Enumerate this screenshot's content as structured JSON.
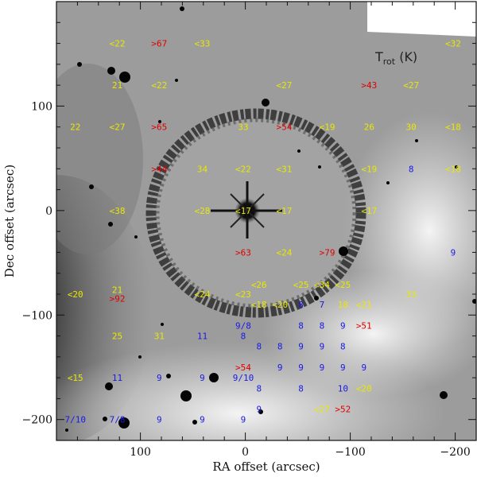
{
  "chart_data": {
    "type": "scatter",
    "title": "",
    "xlabel": "RA offset (arcsec)",
    "ylabel": "Dec offset (arcsec)",
    "key_label": "T",
    "key_sub": "rot",
    "key_unit": " (K)",
    "xlim": [
      180,
      -220
    ],
    "ylim": [
      -220,
      200
    ],
    "x_ticks": [
      100,
      0,
      -100,
      -200
    ],
    "x_tick_labels": [
      "100",
      "0",
      "−100",
      "−200"
    ],
    "y_ticks": [
      100,
      0,
      -100,
      -200
    ],
    "y_tick_labels": [
      "100",
      "0",
      "−100",
      "−200"
    ],
    "grid": false,
    "background": "grayscale nebula image",
    "colors": {
      "upper_limit": "#e8e800",
      "lower_limit": "#e00000",
      "value": "#e8e800",
      "cold_value": "#1a1ae6"
    },
    "points": [
      {
        "x": 122,
        "y": 160,
        "label": "<22",
        "color": "upper_limit"
      },
      {
        "x": 82,
        "y": 160,
        "label": ">67",
        "color": "lower_limit"
      },
      {
        "x": 41,
        "y": 160,
        "label": "<33",
        "color": "upper_limit"
      },
      {
        "x": -198,
        "y": 160,
        "label": "<32",
        "color": "upper_limit"
      },
      {
        "x": 122,
        "y": 120,
        "label": "21",
        "color": "value"
      },
      {
        "x": 82,
        "y": 120,
        "label": "<22",
        "color": "upper_limit"
      },
      {
        "x": -37,
        "y": 120,
        "label": "<27",
        "color": "upper_limit"
      },
      {
        "x": -118,
        "y": 120,
        "label": ">43",
        "color": "lower_limit"
      },
      {
        "x": -158,
        "y": 120,
        "label": "<27",
        "color": "upper_limit"
      },
      {
        "x": 162,
        "y": 80,
        "label": "22",
        "color": "value"
      },
      {
        "x": 122,
        "y": 80,
        "label": "<27",
        "color": "upper_limit"
      },
      {
        "x": 82,
        "y": 80,
        "label": ">65",
        "color": "lower_limit"
      },
      {
        "x": 2,
        "y": 80,
        "label": "33",
        "color": "value"
      },
      {
        "x": -37,
        "y": 80,
        "label": ">54",
        "color": "lower_limit"
      },
      {
        "x": -78,
        "y": 80,
        "label": "<19",
        "color": "upper_limit"
      },
      {
        "x": -118,
        "y": 80,
        "label": "26",
        "color": "value"
      },
      {
        "x": -158,
        "y": 80,
        "label": "30",
        "color": "value"
      },
      {
        "x": -198,
        "y": 80,
        "label": "<18",
        "color": "upper_limit"
      },
      {
        "x": 82,
        "y": 40,
        "label": ">44",
        "color": "lower_limit"
      },
      {
        "x": 41,
        "y": 40,
        "label": "34",
        "color": "value"
      },
      {
        "x": 2,
        "y": 40,
        "label": "<22",
        "color": "upper_limit"
      },
      {
        "x": -37,
        "y": 40,
        "label": "<31",
        "color": "upper_limit"
      },
      {
        "x": -118,
        "y": 40,
        "label": "<19",
        "color": "upper_limit"
      },
      {
        "x": -158,
        "y": 40,
        "label": "8",
        "color": "cold_value"
      },
      {
        "x": -198,
        "y": 40,
        "label": "<18",
        "color": "upper_limit"
      },
      {
        "x": 122,
        "y": 0,
        "label": "<38",
        "color": "upper_limit"
      },
      {
        "x": 41,
        "y": 0,
        "label": "<28",
        "color": "upper_limit"
      },
      {
        "x": 2,
        "y": 0,
        "label": "<17",
        "color": "upper_limit"
      },
      {
        "x": -37,
        "y": 0,
        "label": "<17",
        "color": "upper_limit"
      },
      {
        "x": -118,
        "y": 0,
        "label": "<17",
        "color": "upper_limit"
      },
      {
        "x": 2,
        "y": -40,
        "label": ">63",
        "color": "lower_limit"
      },
      {
        "x": -37,
        "y": -40,
        "label": "<24",
        "color": "upper_limit"
      },
      {
        "x": -78,
        "y": -40,
        "label": ">79",
        "color": "lower_limit"
      },
      {
        "x": -198,
        "y": -40,
        "label": "9",
        "color": "cold_value"
      },
      {
        "x": -13,
        "y": -71,
        "label": "<26",
        "color": "upper_limit"
      },
      {
        "x": -53,
        "y": -71,
        "label": "<25",
        "color": "upper_limit"
      },
      {
        "x": -73,
        "y": -71,
        "label": "<34",
        "color": "upper_limit"
      },
      {
        "x": -93,
        "y": -71,
        "label": "<25",
        "color": "upper_limit"
      },
      {
        "x": 162,
        "y": -80,
        "label": "<20",
        "color": "upper_limit"
      },
      {
        "x": 122,
        "y": -76,
        "label": "21",
        "color": "value"
      },
      {
        "x": 122,
        "y": -84,
        "label": ">92",
        "color": "lower_limit"
      },
      {
        "x": 41,
        "y": -80,
        "label": "<24",
        "color": "upper_limit"
      },
      {
        "x": 2,
        "y": -80,
        "label": "<23",
        "color": "upper_limit"
      },
      {
        "x": -158,
        "y": -80,
        "label": "33",
        "color": "value"
      },
      {
        "x": -13,
        "y": -90,
        "label": "<18",
        "color": "upper_limit"
      },
      {
        "x": -33,
        "y": -90,
        "label": "<20",
        "color": "upper_limit"
      },
      {
        "x": -53,
        "y": -90,
        "label": "8",
        "color": "cold_value"
      },
      {
        "x": -73,
        "y": -90,
        "label": "7",
        "color": "cold_value"
      },
      {
        "x": -93,
        "y": -90,
        "label": "18",
        "color": "value"
      },
      {
        "x": -113,
        "y": -90,
        "label": "<21",
        "color": "upper_limit"
      },
      {
        "x": 2,
        "y": -110,
        "label": "9/8",
        "color": "cold_value"
      },
      {
        "x": -53,
        "y": -110,
        "label": "8",
        "color": "cold_value"
      },
      {
        "x": -73,
        "y": -110,
        "label": "8",
        "color": "cold_value"
      },
      {
        "x": -93,
        "y": -110,
        "label": "9",
        "color": "cold_value"
      },
      {
        "x": -113,
        "y": -110,
        "label": ">51",
        "color": "lower_limit"
      },
      {
        "x": 122,
        "y": -120,
        "label": "25",
        "color": "value"
      },
      {
        "x": 82,
        "y": -120,
        "label": "31",
        "color": "value"
      },
      {
        "x": 41,
        "y": -120,
        "label": "11",
        "color": "cold_value"
      },
      {
        "x": 2,
        "y": -120,
        "label": "8",
        "color": "cold_value"
      },
      {
        "x": -13,
        "y": -130,
        "label": "8",
        "color": "cold_value"
      },
      {
        "x": -33,
        "y": -130,
        "label": "8",
        "color": "cold_value"
      },
      {
        "x": -53,
        "y": -130,
        "label": "9",
        "color": "cold_value"
      },
      {
        "x": -73,
        "y": -130,
        "label": "9",
        "color": "cold_value"
      },
      {
        "x": -93,
        "y": -130,
        "label": "8",
        "color": "cold_value"
      },
      {
        "x": 2,
        "y": -150,
        "label": ">54",
        "color": "lower_limit"
      },
      {
        "x": -33,
        "y": -150,
        "label": "9",
        "color": "cold_value"
      },
      {
        "x": -53,
        "y": -150,
        "label": "9",
        "color": "cold_value"
      },
      {
        "x": -73,
        "y": -150,
        "label": "9",
        "color": "cold_value"
      },
      {
        "x": -93,
        "y": -150,
        "label": "9",
        "color": "cold_value"
      },
      {
        "x": -113,
        "y": -150,
        "label": "9",
        "color": "cold_value"
      },
      {
        "x": 162,
        "y": -160,
        "label": "<15",
        "color": "upper_limit"
      },
      {
        "x": 122,
        "y": -160,
        "label": "11",
        "color": "cold_value"
      },
      {
        "x": 82,
        "y": -160,
        "label": "9",
        "color": "cold_value"
      },
      {
        "x": 41,
        "y": -160,
        "label": "9",
        "color": "cold_value"
      },
      {
        "x": 2,
        "y": -160,
        "label": "9/10",
        "color": "cold_value"
      },
      {
        "x": -13,
        "y": -170,
        "label": "8",
        "color": "cold_value"
      },
      {
        "x": -53,
        "y": -170,
        "label": "8",
        "color": "cold_value"
      },
      {
        "x": -93,
        "y": -170,
        "label": "10",
        "color": "cold_value"
      },
      {
        "x": -113,
        "y": -170,
        "label": "<20",
        "color": "upper_limit"
      },
      {
        "x": -13,
        "y": -190,
        "label": "9",
        "color": "cold_value"
      },
      {
        "x": -73,
        "y": -190,
        "label": "<27",
        "color": "upper_limit"
      },
      {
        "x": -93,
        "y": -190,
        "label": ">52",
        "color": "lower_limit"
      },
      {
        "x": 162,
        "y": -200,
        "label": "7/10",
        "color": "cold_value"
      },
      {
        "x": 122,
        "y": -200,
        "label": "7/8",
        "color": "cold_value"
      },
      {
        "x": 82,
        "y": -200,
        "label": "9",
        "color": "cold_value"
      },
      {
        "x": 41,
        "y": -200,
        "label": "9",
        "color": "cold_value"
      },
      {
        "x": 2,
        "y": -200,
        "label": "9",
        "color": "cold_value"
      }
    ]
  }
}
